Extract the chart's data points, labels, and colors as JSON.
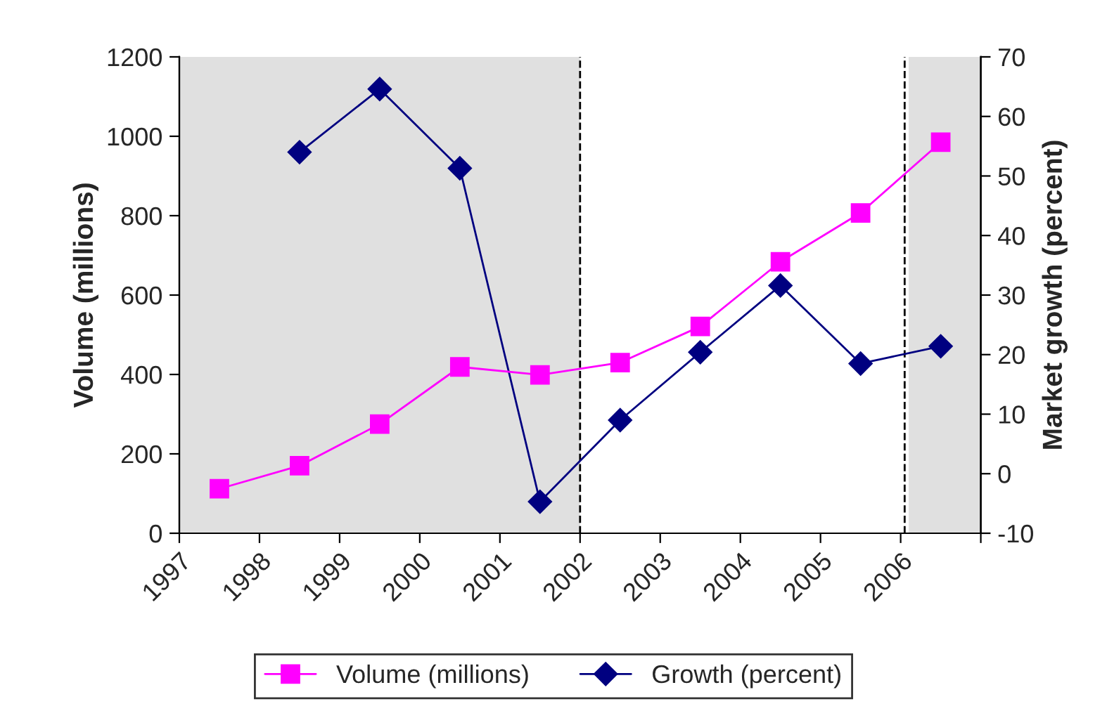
{
  "chart_data": {
    "type": "line",
    "x": [
      1997.5,
      1998.5,
      1999.5,
      2000.5,
      2001.5,
      2002.5,
      2003.5,
      2004.5,
      2005.5,
      2006.5
    ],
    "series": [
      {
        "name": "Volume (millions)",
        "color": "#ff00ff",
        "marker": "square",
        "values": [
          112,
          170,
          275,
          419,
          399,
          430,
          521,
          684,
          807,
          985
        ]
      },
      {
        "name": "Growth (percent)",
        "color": "#000080",
        "marker": "diamond",
        "axis": "y2",
        "values": [
          null,
          54,
          64.6,
          51.3,
          -4.7,
          9,
          20.4,
          31.6,
          18.5,
          21.4
        ]
      }
    ],
    "ylabel": "Volume (millions)",
    "y2label": "Market growth (percent)",
    "xlim": [
      1997,
      2007
    ],
    "xticks": [
      1997,
      1998,
      1999,
      2000,
      2001,
      2002,
      2003,
      2004,
      2005,
      2006,
      {
        "value": 2007,
        "label": null
      }
    ],
    "ylim": [
      0,
      1200
    ],
    "yticks": [
      0,
      200,
      400,
      600,
      800,
      1000,
      1200
    ],
    "y2lim": [
      -10,
      70
    ],
    "y2ticks": [
      -10,
      0,
      10,
      20,
      30,
      40,
      50,
      60,
      70
    ],
    "bands": [
      {
        "axis": "x",
        "from": 1997,
        "to": 2002,
        "color": "#e0e0e0"
      },
      {
        "axis": "x",
        "from": 2006.1,
        "to": 2007,
        "color": "#e0e0e0"
      }
    ],
    "ref_lines": [
      {
        "axis": "x",
        "value": 2002,
        "line_style": "dashed",
        "color": "#000000"
      },
      {
        "axis": "x",
        "value": 2006.05,
        "line_style": "dashed",
        "color": "#000000"
      }
    ],
    "legend": "bottom",
    "line_style": "solid",
    "grid": false
  }
}
